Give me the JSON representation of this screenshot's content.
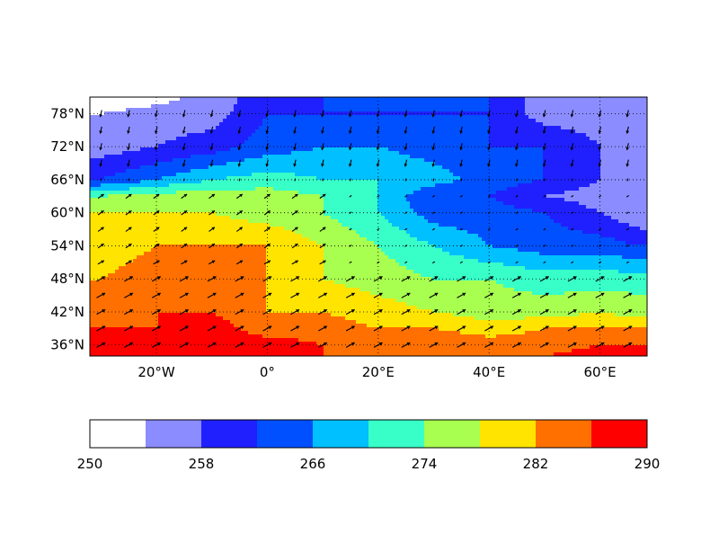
{
  "chart_data": {
    "type": "heatmap",
    "title": "",
    "xlabel": "",
    "ylabel": "",
    "x": [
      -30,
      -20,
      -10,
      0,
      10,
      20,
      30,
      40,
      50,
      60,
      67.5
    ],
    "y": [
      34,
      36,
      42,
      48,
      54,
      60,
      66,
      72,
      78,
      81
    ],
    "xlim": [
      -32,
      68.5
    ],
    "ylim": [
      34,
      81
    ],
    "z": [
      [
        286,
        288,
        288,
        286,
        286,
        284,
        284,
        284,
        286,
        288,
        288
      ],
      [
        288,
        288,
        288,
        288,
        286,
        286,
        286,
        284,
        284,
        286,
        286
      ],
      [
        286,
        286,
        288,
        284,
        284,
        282,
        282,
        280,
        282,
        282,
        282
      ],
      [
        284,
        286,
        286,
        282,
        282,
        280,
        278,
        276,
        276,
        278,
        276
      ],
      [
        282,
        284,
        282,
        282,
        278,
        276,
        274,
        274,
        272,
        272,
        272
      ],
      [
        280,
        282,
        282,
        282,
        278,
        274,
        270,
        266,
        264,
        264,
        262
      ],
      [
        278,
        278,
        278,
        276,
        274,
        270,
        264,
        264,
        262,
        258,
        254
      ],
      [
        274,
        276,
        276,
        276,
        274,
        270,
        262,
        262,
        258,
        256,
        256
      ],
      [
        262,
        266,
        270,
        272,
        270,
        270,
        268,
        264,
        262,
        258,
        256
      ],
      [
        256,
        258,
        260,
        264,
        266,
        266,
        264,
        262,
        262,
        258,
        256
      ],
      [
        254,
        256,
        256,
        262,
        262,
        262,
        262,
        262,
        256,
        256,
        256
      ],
      [
        250,
        252,
        256,
        260,
        262,
        262,
        262,
        262,
        256,
        254,
        254
      ]
    ],
    "z_lat": [
      34,
      36,
      39,
      42,
      48,
      54,
      60,
      63,
      66,
      72,
      78,
      81
    ],
    "levels": [
      250,
      254,
      258,
      262,
      266,
      270,
      274,
      278,
      282,
      286,
      290
    ],
    "level_colors": [
      "#ffffff",
      "#8b8cff",
      "#2020ff",
      "#0050ff",
      "#00c0ff",
      "#38ffc8",
      "#a8ff50",
      "#ffe400",
      "#ff7000",
      "#ff0000"
    ],
    "x_ticks": [
      {
        "value": -20,
        "label": "20°W"
      },
      {
        "value": 0,
        "label": "0°"
      },
      {
        "value": 20,
        "label": "20°E"
      },
      {
        "value": 40,
        "label": "40°E"
      },
      {
        "value": 60,
        "label": "60°E"
      }
    ],
    "y_ticks": [
      {
        "value": 36,
        "label": "36°N"
      },
      {
        "value": 42,
        "label": "42°N"
      },
      {
        "value": 48,
        "label": "48°N"
      },
      {
        "value": 54,
        "label": "54°N"
      },
      {
        "value": 60,
        "label": "60°N"
      },
      {
        "value": 66,
        "label": "66°N"
      },
      {
        "value": 72,
        "label": "72°N"
      },
      {
        "value": 78,
        "label": "78°N"
      }
    ],
    "grid": true,
    "colorbar": {
      "placement": "bottom",
      "ticks": [
        {
          "value": 250,
          "label": "250"
        },
        {
          "value": 258,
          "label": "258"
        },
        {
          "value": 266,
          "label": "266"
        },
        {
          "value": 274,
          "label": "274"
        },
        {
          "value": 282,
          "label": "282"
        },
        {
          "value": 290,
          "label": "290"
        }
      ]
    },
    "vectors": {
      "lon": [
        -30,
        -25,
        -20,
        -15,
        -10,
        -5,
        0,
        5,
        10,
        15,
        20,
        25,
        30,
        35,
        40,
        45,
        50,
        55,
        60,
        65
      ],
      "lat": [
        36,
        39,
        42,
        45,
        48,
        51,
        54,
        57,
        60,
        63,
        66,
        69,
        72,
        75,
        78
      ],
      "color": "#000000"
    }
  }
}
